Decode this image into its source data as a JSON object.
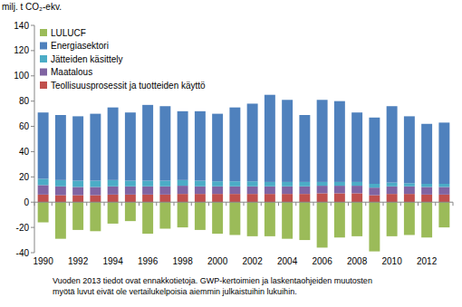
{
  "chart_data": {
    "type": "bar",
    "stacked": true,
    "y_label": "milj. t CO₂-ekv.",
    "annotations": [
      "Vuoden 2013 tiedot ovat ennakkotietoja. GWP-kertoimien ja laskentaohjeiden muutosten",
      "myötä luvut eivät ole vertailukelpoisia aiemmin julkaistuihin lukuihin."
    ],
    "categories": [
      "1990",
      null,
      "1992",
      null,
      "1994",
      null,
      "1996",
      null,
      "1998",
      null,
      "2000",
      null,
      "2002",
      null,
      "2004",
      null,
      "2006",
      null,
      "2008",
      null,
      "2010",
      null,
      "2012",
      null
    ],
    "series": [
      {
        "name": "LULUCF",
        "color": "#9bbb59",
        "values": [
          -16,
          -29,
          -22,
          -23,
          -17,
          -15,
          -25,
          -21,
          -20,
          -22,
          -25,
          -26,
          -27,
          -27,
          -29,
          -30,
          -36,
          -28,
          -27,
          -39,
          -27,
          -26,
          -28,
          -20
        ]
      },
      {
        "name": "Energiasektori",
        "color": "#4f81bd",
        "values": [
          52.5,
          51.5,
          51,
          53,
          57.5,
          54,
          60,
          59,
          54.5,
          55,
          53.5,
          58.5,
          61.5,
          69,
          65,
          53,
          65,
          64,
          55,
          52.5,
          60.5,
          53,
          47.5,
          48.5
        ]
      },
      {
        "name": "Jätteiden käsittely",
        "color": "#4bacc6",
        "values": [
          5,
          5,
          5,
          5,
          5,
          4.5,
          4.5,
          4.5,
          4.5,
          4.5,
          4,
          4,
          4,
          3.5,
          3.5,
          3.5,
          3,
          3,
          3,
          3,
          3,
          2.5,
          2.5,
          2.5
        ]
      },
      {
        "name": "Maatalous",
        "color": "#8064a2",
        "values": [
          7.5,
          7,
          6.5,
          6.5,
          6.5,
          6.5,
          6.5,
          6.5,
          6.5,
          6,
          6,
          6,
          6,
          6,
          6,
          6,
          6,
          6,
          6,
          6,
          6,
          6,
          6,
          6
        ]
      },
      {
        "name": "Teollisuusprosessit ja tuotteiden käyttö",
        "color": "#c0504d",
        "values": [
          6,
          5.5,
          5.5,
          5.5,
          6,
          6,
          6,
          6,
          6.5,
          6.5,
          6.5,
          6.5,
          6.5,
          6.5,
          6.5,
          6.5,
          7,
          7,
          7,
          5.5,
          6.5,
          6.5,
          6,
          6
        ]
      }
    ],
    "ylim": [
      -40,
      140
    ],
    "yticks": [
      -40,
      -20,
      0,
      20,
      40,
      60,
      80,
      100,
      120,
      140
    ],
    "grid": false,
    "legend": "top-left"
  }
}
